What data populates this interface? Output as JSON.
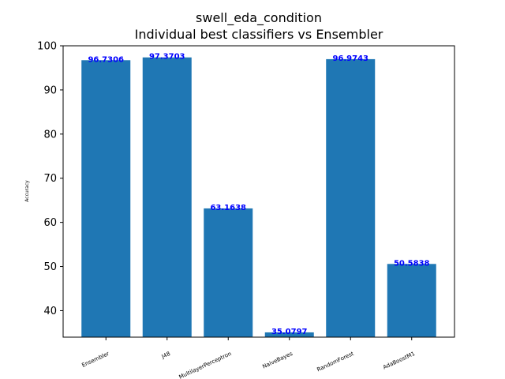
{
  "chart_data": {
    "type": "bar",
    "title": "swell_eda_condition",
    "subtitle": "Individual best classifiers vs Ensembler",
    "xlabel": "",
    "ylabel": "Accuracy",
    "categories": [
      "Ensembler",
      "J48",
      "MultilayerPerceptron",
      "NaiveBayes",
      "RandomForest",
      "AdaBoostM1"
    ],
    "values": [
      96.7306,
      97.3703,
      63.1638,
      35.0797,
      96.9743,
      50.5838
    ],
    "value_labels": [
      "96.7306",
      "97.3703",
      "63.1638",
      "35.0797",
      "96.9743",
      "50.5838"
    ],
    "ylim": [
      34,
      100
    ],
    "yticks": [
      40,
      50,
      60,
      70,
      80,
      90,
      100
    ],
    "grid": false,
    "bar_color": "#1f77b4",
    "value_label_color": "#0000ff"
  }
}
